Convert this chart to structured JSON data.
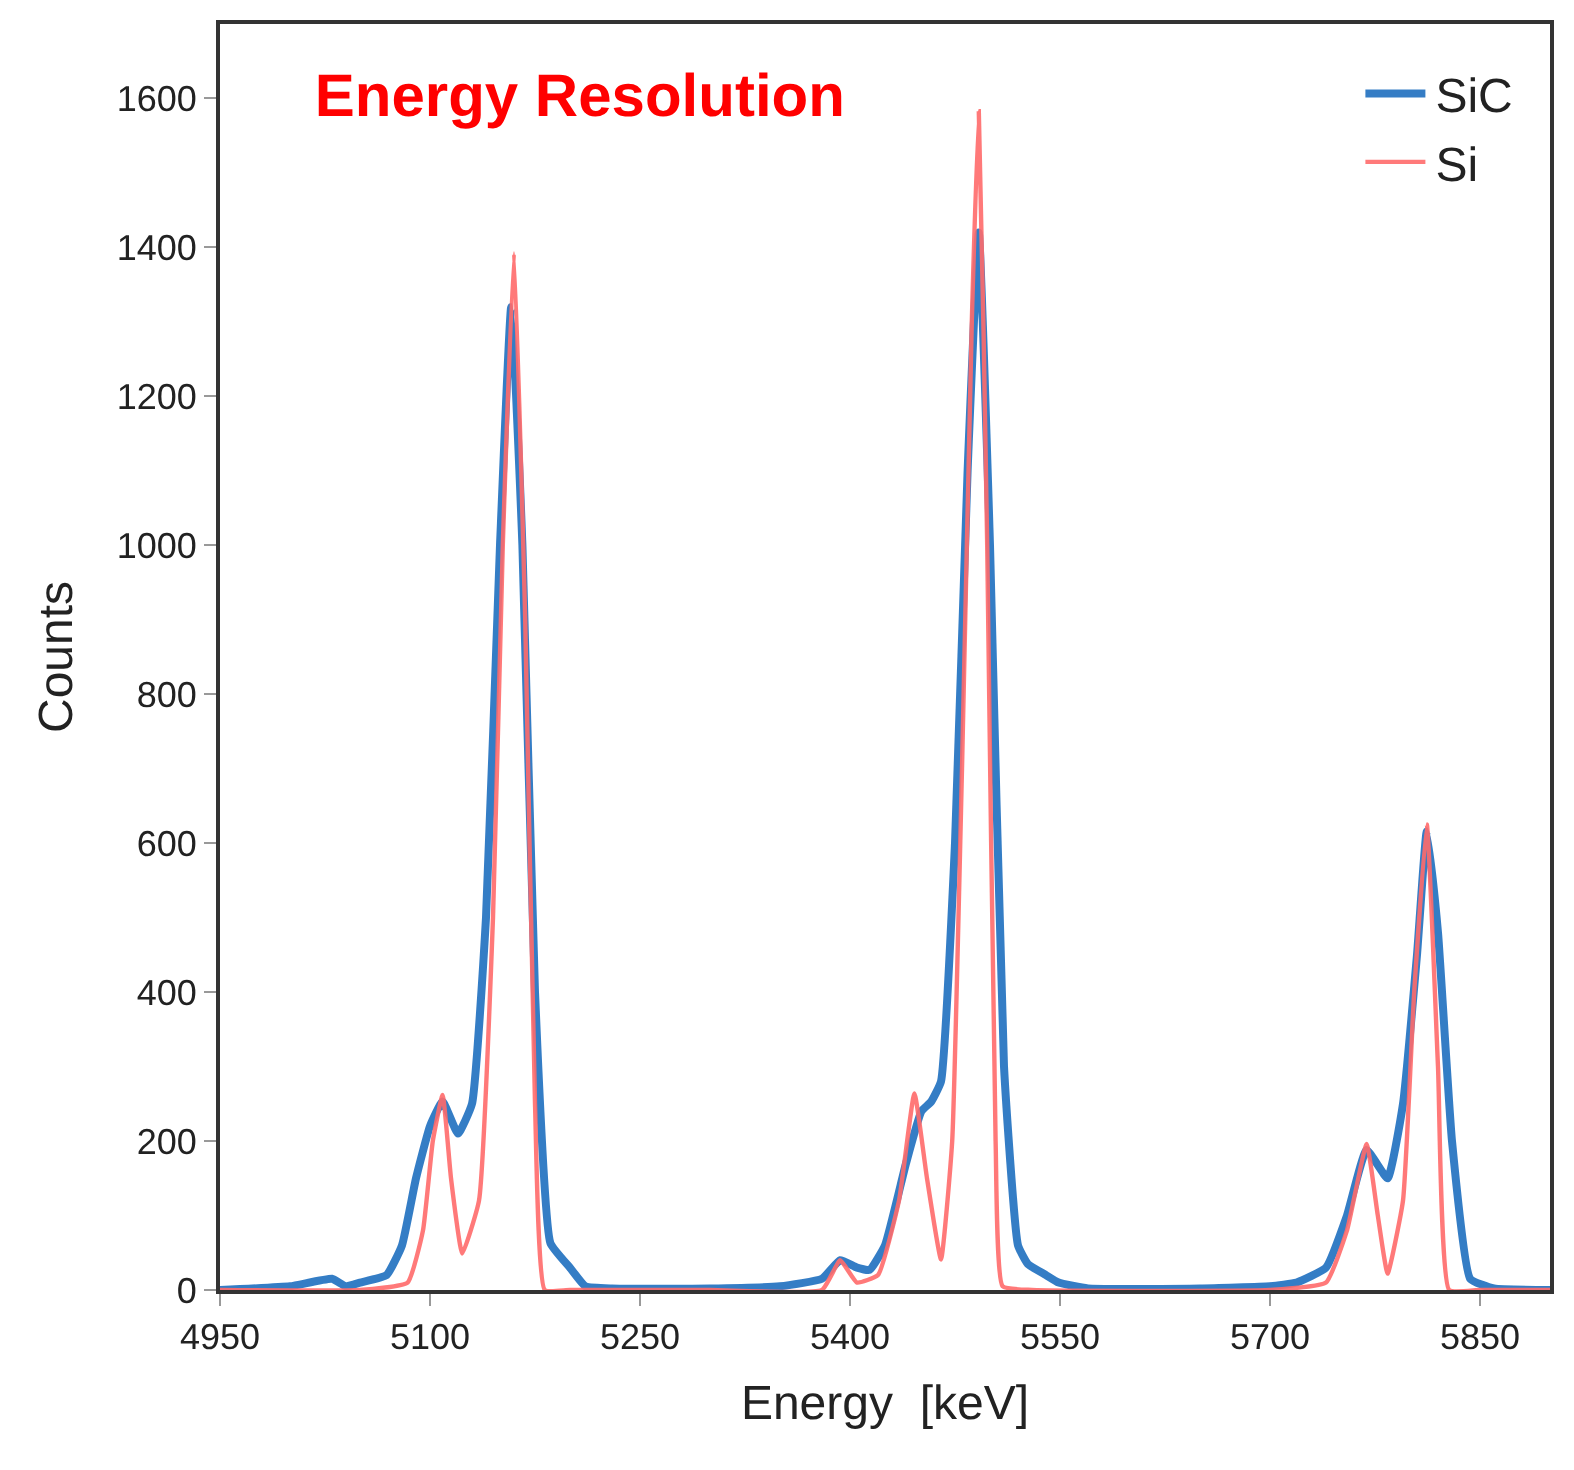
{
  "chart_data": {
    "type": "line",
    "title": "Energy Resolution",
    "xlabel": "Energy  [keV]",
    "ylabel": "Counts",
    "xlim": [
      4950,
      5900
    ],
    "xticks": [
      4950,
      5100,
      5250,
      5400,
      5550,
      5700,
      5850
    ],
    "ylim": [
      0,
      1700
    ],
    "yticks": [
      0,
      200,
      400,
      600,
      800,
      1000,
      1200,
      1400,
      1600
    ],
    "legend": "top right",
    "marker": "none",
    "line_style": "solid",
    "series": [
      {
        "name": "SiC",
        "color": "#1f6fbf",
        "x": [
          4950,
          5000,
          5030,
          5040,
          5050,
          5069,
          5080,
          5090,
          5100,
          5109,
          5120,
          5130,
          5140,
          5150,
          5158,
          5166,
          5175,
          5186,
          5200,
          5211,
          5230,
          5300,
          5350,
          5380,
          5393,
          5405,
          5414,
          5425,
          5440,
          5451,
          5458,
          5465,
          5475,
          5484,
          5492,
          5500,
          5510,
          5520,
          5527,
          5540,
          5549,
          5570,
          5650,
          5700,
          5719,
          5740,
          5755,
          5769,
          5784,
          5795,
          5805,
          5812,
          5820,
          5830,
          5843,
          5860,
          5900
        ],
        "values": [
          0,
          5,
          15,
          5,
          10,
          20,
          60,
          150,
          220,
          253,
          210,
          250,
          500,
          1000,
          1320,
          1000,
          400,
          63,
          30,
          5,
          2,
          2,
          5,
          15,
          40,
          30,
          27,
          60,
          170,
          240,
          253,
          280,
          600,
          1100,
          1420,
          1000,
          300,
          60,
          35,
          20,
          10,
          2,
          2,
          5,
          10,
          30,
          100,
          188,
          150,
          250,
          450,
          616,
          480,
          200,
          15,
          2,
          0
        ]
      },
      {
        "name": "Si",
        "color": "#ff6b6b",
        "x": [
          4950,
          5050,
          5084,
          5095,
          5102,
          5109,
          5115,
          5123,
          5135,
          5145,
          5152,
          5160,
          5168,
          5175,
          5182,
          5200,
          5300,
          5380,
          5393,
          5405,
          5420,
          5435,
          5446,
          5455,
          5465,
          5473,
          5480,
          5487,
          5492,
          5498,
          5504,
          5509,
          5530,
          5700,
          5740,
          5755,
          5769,
          5777,
          5784,
          5795,
          5803,
          5812,
          5820,
          5828,
          5850,
          5900
        ],
        "values": [
          0,
          0,
          10,
          80,
          200,
          262,
          150,
          49,
          120,
          500,
          1000,
          1392,
          900,
          250,
          0,
          0,
          0,
          0,
          40,
          10,
          20,
          120,
          264,
          150,
          41,
          200,
          700,
          1300,
          1583,
          1000,
          200,
          5,
          0,
          0,
          10,
          80,
          196,
          100,
          22,
          120,
          400,
          625,
          300,
          0,
          0,
          0
        ]
      }
    ]
  }
}
